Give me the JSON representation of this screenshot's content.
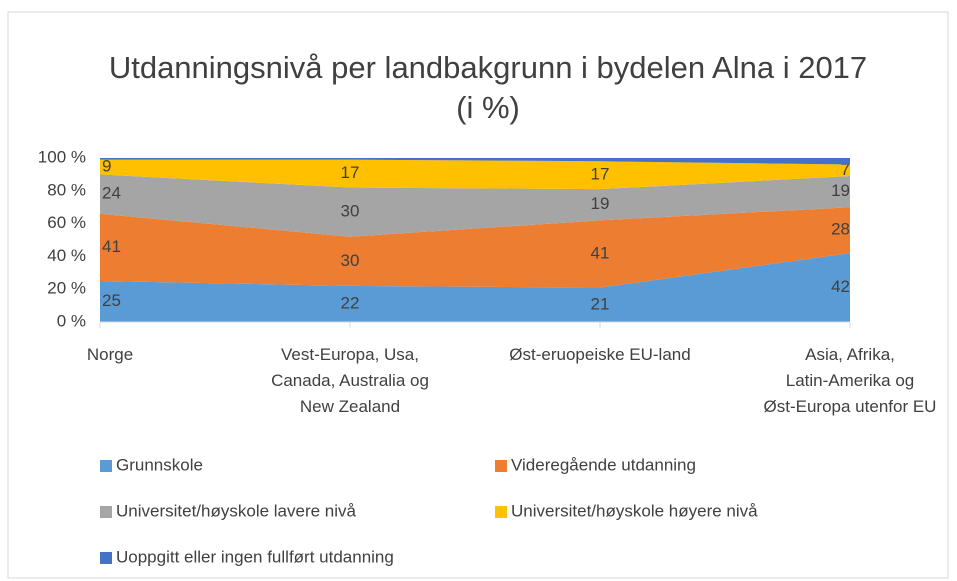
{
  "chart_data": {
    "type": "area",
    "stacked": true,
    "title": "Utdanningsnivå per landbakgrunn i bydelen Alna i 2017 (i %)",
    "categories": [
      "Norge",
      "Vest-Europa, Usa, Canada, Australia og New Zealand",
      "Øst-eruopeiske EU-land",
      "Asia, Afrika, Latin-Amerika og Øst-Europa utenfor EU"
    ],
    "series": [
      {
        "name": "Grunnskole",
        "color": "#5b9bd5",
        "values": [
          25,
          22,
          21,
          42
        ],
        "data_labels": true
      },
      {
        "name": "Videregående utdanning",
        "color": "#ed7d31",
        "values": [
          41,
          30,
          41,
          28
        ],
        "data_labels": true
      },
      {
        "name": "Universitet/høyskole lavere nivå",
        "color": "#a5a5a5",
        "values": [
          24,
          30,
          19,
          19
        ],
        "data_labels": true
      },
      {
        "name": "Universitet/høyskole høyere nivå",
        "color": "#ffc000",
        "values": [
          9,
          17,
          17,
          7
        ],
        "data_labels": true
      },
      {
        "name": "Uoppgitt eller ingen fullført utdanning",
        "color": "#4472c4",
        "values": [
          1,
          1,
          2,
          4
        ],
        "data_labels": false
      }
    ],
    "ylim": [
      0,
      100
    ],
    "yticks": [
      {
        "value": 0,
        "label": "0 %"
      },
      {
        "value": 20,
        "label": "20 %"
      },
      {
        "value": 40,
        "label": "40 %"
      },
      {
        "value": 60,
        "label": "60 %"
      },
      {
        "value": 80,
        "label": "80 %"
      },
      {
        "value": 100,
        "label": "100 %"
      }
    ],
    "grid": false,
    "legend": "bottom"
  }
}
